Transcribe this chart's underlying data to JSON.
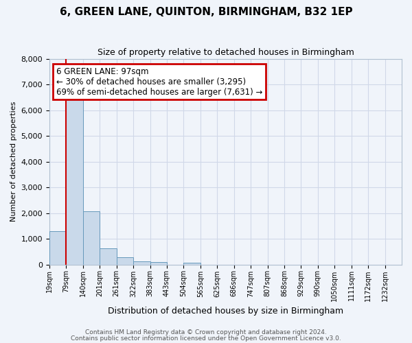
{
  "title": "6, GREEN LANE, QUINTON, BIRMINGHAM, B32 1EP",
  "subtitle": "Size of property relative to detached houses in Birmingham",
  "xlabel": "Distribution of detached houses by size in Birmingham",
  "ylabel": "Number of detached properties",
  "bin_labels": [
    "19sqm",
    "79sqm",
    "140sqm",
    "201sqm",
    "261sqm",
    "322sqm",
    "383sqm",
    "443sqm",
    "504sqm",
    "565sqm",
    "625sqm",
    "686sqm",
    "747sqm",
    "807sqm",
    "868sqm",
    "929sqm",
    "990sqm",
    "1050sqm",
    "1111sqm",
    "1172sqm",
    "1232sqm"
  ],
  "bar_heights": [
    1300,
    6580,
    2060,
    640,
    290,
    130,
    90,
    0,
    80,
    0,
    0,
    0,
    0,
    0,
    0,
    0,
    0,
    0,
    0,
    0,
    0
  ],
  "bar_color": "#c9d9ea",
  "bar_edge_color": "#6699bb",
  "ylim": [
    0,
    8000
  ],
  "yticks": [
    0,
    1000,
    2000,
    3000,
    4000,
    5000,
    6000,
    7000,
    8000
  ],
  "red_line_x": 1,
  "annotation_title": "6 GREEN LANE: 97sqm",
  "annotation_line1": "← 30% of detached houses are smaller (3,295)",
  "annotation_line2": "69% of semi-detached houses are larger (7,631) →",
  "annotation_box_color": "#ffffff",
  "annotation_box_edge": "#cc0000",
  "red_line_color": "#cc0000",
  "grid_color": "#d0d8e8",
  "background_color": "#f0f4fa",
  "footer1": "Contains HM Land Registry data © Crown copyright and database right 2024.",
  "footer2": "Contains public sector information licensed under the Open Government Licence v3.0."
}
